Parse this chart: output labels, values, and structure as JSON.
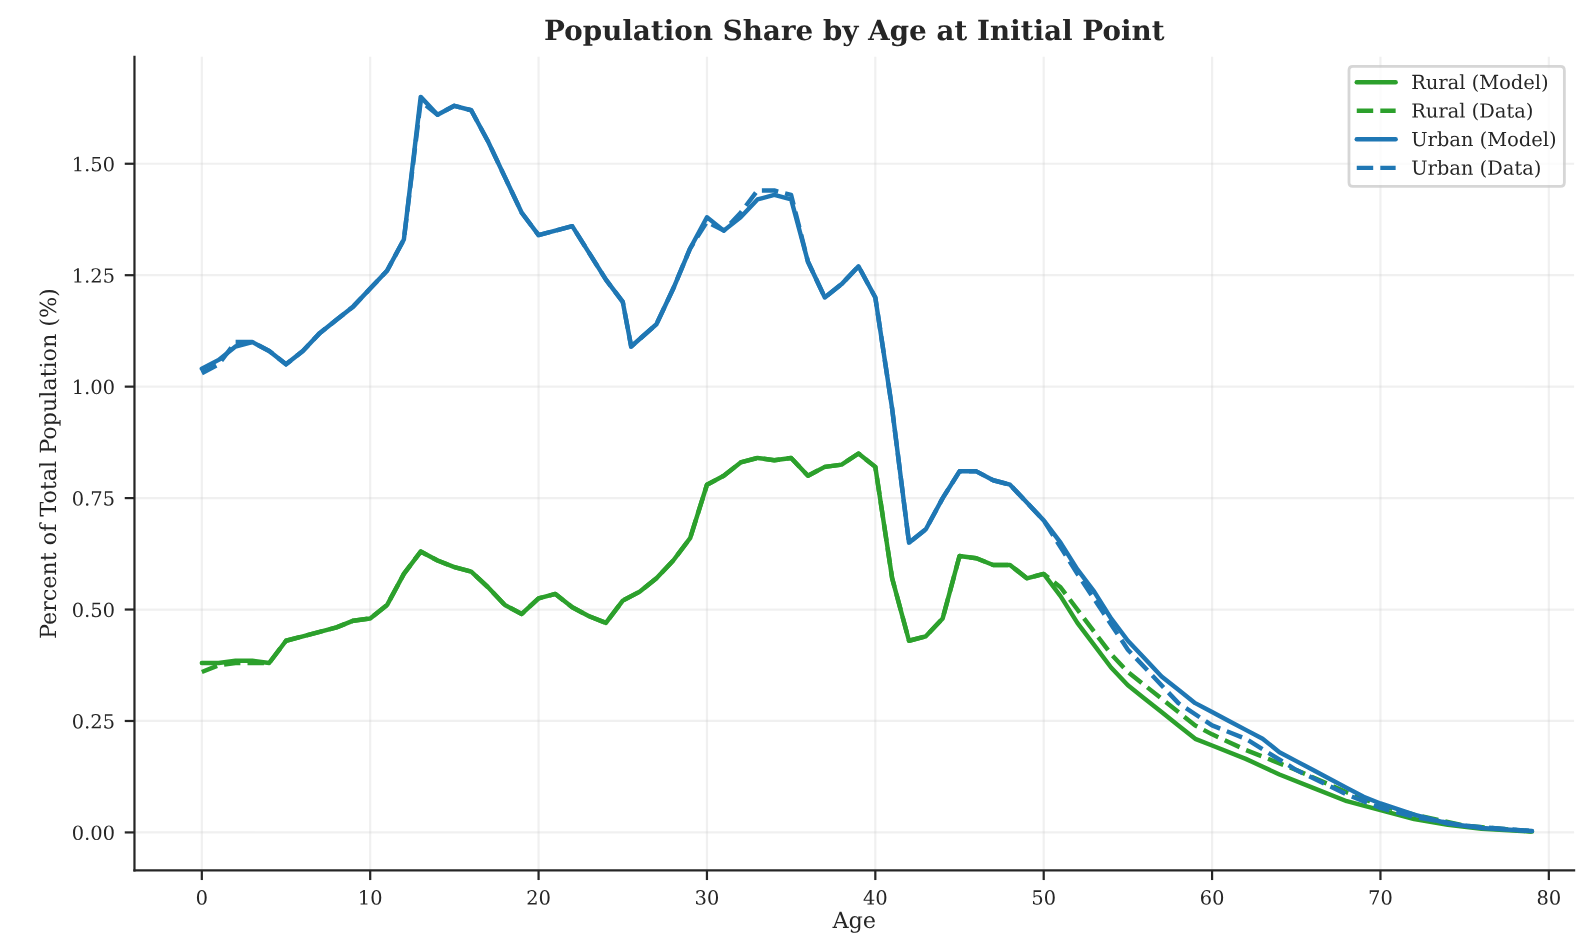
{
  "chart_data": {
    "type": "line",
    "title": "Population Share by Age at Initial Point",
    "xlabel": "Age",
    "ylabel": "Percent of Total Population (%)",
    "xlim": [
      -4,
      81.5
    ],
    "ylim": [
      -0.085,
      1.74
    ],
    "xticks": [
      0,
      10,
      20,
      30,
      40,
      50,
      60,
      70,
      80
    ],
    "yticks": [
      {
        "value": 0,
        "label": "0.00"
      },
      {
        "value": 0.25,
        "label": "0.25"
      },
      {
        "value": 0.5,
        "label": "0.50"
      },
      {
        "value": 0.75,
        "label": "0.75"
      },
      {
        "value": 1.0,
        "label": "1.00"
      },
      {
        "value": 1.25,
        "label": "1.25"
      },
      {
        "value": 1.5,
        "label": "1.50"
      }
    ],
    "grid": true,
    "legend": "top right",
    "series": [
      {
        "name": "Rural (Model)",
        "color": "#2ca02c",
        "line_style": "solid",
        "x": [
          0,
          1,
          2,
          3,
          4,
          5,
          6,
          7,
          8,
          9,
          10,
          11,
          12,
          13,
          14,
          15,
          16,
          17,
          18,
          19,
          20,
          21,
          22,
          23,
          24,
          25,
          26,
          27,
          28,
          29,
          30,
          31,
          32,
          33,
          34,
          35,
          36,
          37,
          38,
          39,
          40,
          41,
          42,
          43,
          44,
          45,
          46,
          47,
          48,
          49,
          50,
          51,
          52,
          53,
          54,
          55,
          56,
          57,
          58,
          59,
          60,
          62,
          64,
          66,
          68,
          70,
          72,
          74,
          76,
          79
        ],
        "values": [
          0.38,
          0.38,
          0.385,
          0.385,
          0.38,
          0.43,
          0.44,
          0.45,
          0.46,
          0.475,
          0.48,
          0.51,
          0.58,
          0.63,
          0.61,
          0.595,
          0.585,
          0.55,
          0.51,
          0.49,
          0.525,
          0.535,
          0.505,
          0.485,
          0.47,
          0.52,
          0.54,
          0.57,
          0.61,
          0.66,
          0.78,
          0.8,
          0.83,
          0.84,
          0.835,
          0.84,
          0.8,
          0.82,
          0.825,
          0.85,
          0.82,
          0.57,
          0.43,
          0.44,
          0.48,
          0.62,
          0.615,
          0.6,
          0.6,
          0.57,
          0.58,
          0.53,
          0.47,
          0.42,
          0.37,
          0.33,
          0.3,
          0.27,
          0.24,
          0.21,
          0.195,
          0.165,
          0.13,
          0.1,
          0.07,
          0.05,
          0.03,
          0.017,
          0.008,
          0.002
        ]
      },
      {
        "name": "Rural (Data)",
        "color": "#2ca02c",
        "line_style": "dashed",
        "x": [
          0,
          1,
          2,
          3,
          4,
          5,
          6,
          7,
          8,
          9,
          10,
          11,
          12,
          13,
          14,
          15,
          16,
          17,
          18,
          19,
          20,
          21,
          22,
          23,
          24,
          25,
          26,
          27,
          28,
          29,
          30,
          31,
          32,
          33,
          34,
          35,
          36,
          37,
          38,
          39,
          40,
          41,
          42,
          43,
          44,
          45,
          46,
          47,
          48,
          49,
          50,
          51,
          52,
          53,
          54,
          55,
          56,
          57,
          58,
          59,
          60,
          62,
          65,
          68,
          70,
          72,
          75,
          79
        ],
        "values": [
          0.36,
          0.375,
          0.38,
          0.38,
          0.38,
          0.43,
          0.44,
          0.45,
          0.46,
          0.475,
          0.48,
          0.51,
          0.58,
          0.63,
          0.61,
          0.595,
          0.585,
          0.55,
          0.51,
          0.49,
          0.525,
          0.535,
          0.505,
          0.485,
          0.47,
          0.52,
          0.54,
          0.57,
          0.61,
          0.66,
          0.78,
          0.8,
          0.83,
          0.84,
          0.835,
          0.84,
          0.8,
          0.82,
          0.825,
          0.85,
          0.82,
          0.57,
          0.43,
          0.44,
          0.48,
          0.62,
          0.615,
          0.6,
          0.6,
          0.57,
          0.58,
          0.55,
          0.5,
          0.45,
          0.4,
          0.36,
          0.33,
          0.3,
          0.27,
          0.24,
          0.22,
          0.185,
          0.14,
          0.09,
          0.06,
          0.04,
          0.015,
          0.002
        ]
      },
      {
        "name": "Urban (Model)",
        "color": "#1f77b4",
        "line_style": "solid",
        "x": [
          0,
          1,
          2,
          3,
          4,
          5,
          6,
          7,
          8,
          9,
          10,
          11,
          12,
          13,
          14,
          15,
          16,
          17,
          18,
          19,
          20,
          21,
          22,
          23,
          24,
          25,
          25.5,
          27,
          28,
          29,
          30,
          31,
          32,
          33,
          34,
          35,
          36,
          37,
          38,
          39,
          40,
          41,
          42,
          43,
          44,
          45,
          46,
          47,
          48,
          49,
          50,
          51,
          52,
          53,
          54,
          55,
          56,
          57,
          58,
          59,
          60,
          61,
          62,
          63,
          64,
          65,
          66,
          67,
          68,
          69,
          70,
          72,
          74,
          76,
          79
        ],
        "values": [
          1.04,
          1.06,
          1.09,
          1.1,
          1.08,
          1.05,
          1.08,
          1.12,
          1.15,
          1.18,
          1.22,
          1.26,
          1.33,
          1.65,
          1.61,
          1.63,
          1.62,
          1.55,
          1.47,
          1.39,
          1.34,
          1.35,
          1.36,
          1.3,
          1.24,
          1.19,
          1.09,
          1.14,
          1.22,
          1.31,
          1.38,
          1.35,
          1.38,
          1.42,
          1.43,
          1.42,
          1.28,
          1.2,
          1.23,
          1.27,
          1.2,
          0.95,
          0.65,
          0.68,
          0.75,
          0.81,
          0.81,
          0.79,
          0.78,
          0.74,
          0.7,
          0.65,
          0.59,
          0.54,
          0.48,
          0.43,
          0.39,
          0.35,
          0.32,
          0.29,
          0.27,
          0.25,
          0.23,
          0.21,
          0.18,
          0.16,
          0.14,
          0.12,
          0.1,
          0.08,
          0.065,
          0.04,
          0.02,
          0.01,
          0.003
        ]
      },
      {
        "name": "Urban (Data)",
        "color": "#1f77b4",
        "line_style": "dashed",
        "x": [
          0,
          1,
          2,
          3,
          4,
          5,
          6,
          7,
          8,
          9,
          10,
          11,
          12,
          13,
          14,
          15,
          16,
          17,
          18,
          19,
          20,
          21,
          22,
          23,
          24,
          25,
          25.5,
          27,
          28,
          29,
          30,
          31,
          32,
          33,
          34,
          35,
          36,
          37,
          38,
          39,
          40,
          41,
          42,
          43,
          44,
          45,
          46,
          47,
          48,
          49,
          50,
          52,
          55,
          58,
          60,
          62,
          65,
          68,
          70,
          72,
          75,
          79
        ],
        "values": [
          1.03,
          1.05,
          1.1,
          1.1,
          1.08,
          1.05,
          1.08,
          1.12,
          1.15,
          1.18,
          1.22,
          1.26,
          1.33,
          1.64,
          1.61,
          1.63,
          1.62,
          1.55,
          1.47,
          1.39,
          1.34,
          1.35,
          1.36,
          1.3,
          1.24,
          1.19,
          1.09,
          1.14,
          1.22,
          1.31,
          1.37,
          1.35,
          1.39,
          1.44,
          1.44,
          1.43,
          1.28,
          1.2,
          1.23,
          1.27,
          1.2,
          0.95,
          0.65,
          0.68,
          0.75,
          0.81,
          0.81,
          0.79,
          0.78,
          0.74,
          0.7,
          0.58,
          0.41,
          0.29,
          0.24,
          0.21,
          0.14,
          0.085,
          0.055,
          0.035,
          0.015,
          0.003
        ]
      }
    ]
  }
}
